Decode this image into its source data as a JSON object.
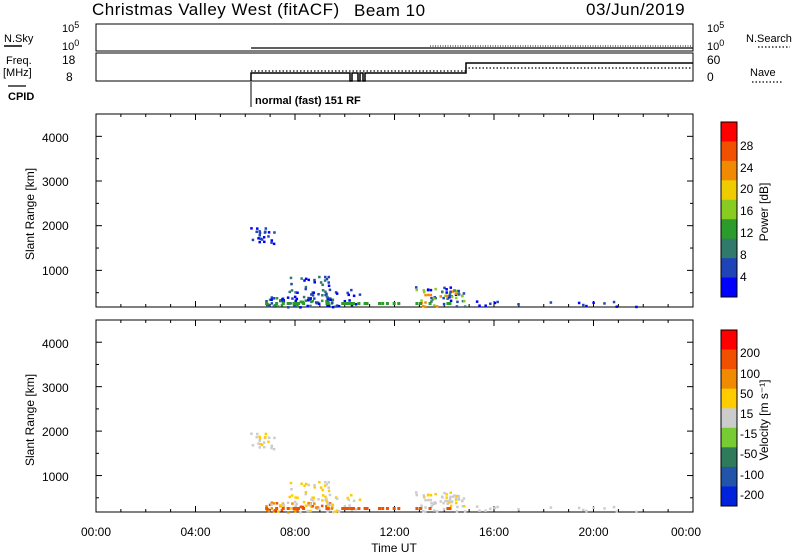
{
  "header": {
    "station_title": "Christmas Valley West (fitACF)",
    "beam": "Beam 10",
    "date": "03/Jun/2019"
  },
  "top_panels": {
    "nsky_label": "N.Sky",
    "nsearch_label": "N.Search",
    "freq_label_line1": "Freq.",
    "freq_label_line2": "[MHz]",
    "nave_label": "Nave",
    "cpid_label": "CPID",
    "nsky_ticks": [
      "10^5",
      "10^0"
    ],
    "nsearch_ticks": [
      "10^5",
      "10^0"
    ],
    "freq_ticks": [
      "18",
      "8"
    ],
    "nave_ticks": [
      "60",
      "0"
    ],
    "cpid_text": "normal (fast) 151 RF"
  },
  "chart_data": [
    {
      "type": "heatmap",
      "name": "power",
      "ylabel": "Slant Range [km]",
      "xlabel": "",
      "y_ticks": [
        "4000",
        "3000",
        "2000",
        "1000"
      ],
      "ylim": [
        180,
        4500
      ],
      "xlim": [
        0,
        24
      ],
      "colorbar_label": "Power [dB]",
      "colorbar_ticks": [
        "28",
        "24",
        "20",
        "16",
        "12",
        "8",
        "4"
      ],
      "colorbar_colors": [
        "#0000ff",
        "#1f44b8",
        "#2f7a6a",
        "#2b9b2b",
        "#88cc22",
        "#eecc00",
        "#f08a00",
        "#f05000",
        "#ff0000"
      ],
      "colorbar_range": [
        0,
        32
      ]
    },
    {
      "type": "heatmap",
      "name": "velocity",
      "ylabel": "Slant Range [km]",
      "xlabel": "Time UT",
      "y_ticks": [
        "4000",
        "3000",
        "2000",
        "1000"
      ],
      "ylim": [
        180,
        4500
      ],
      "xlim": [
        0,
        24
      ],
      "x_ticks": [
        "00:00",
        "04:00",
        "08:00",
        "12:00",
        "16:00",
        "20:00",
        "00:00"
      ],
      "colorbar_label": "Velocity [m s⁻¹]",
      "colorbar_ticks": [
        "200",
        "100",
        "50",
        "15",
        "-15",
        "-50",
        "-100",
        "-200"
      ],
      "colorbar_colors": [
        "#0022dd",
        "#2255aa",
        "#2f7a5a",
        "#77cc33",
        "#cccccc",
        "#ffcc00",
        "#f08a00",
        "#f05000",
        "#ff0000"
      ]
    }
  ]
}
